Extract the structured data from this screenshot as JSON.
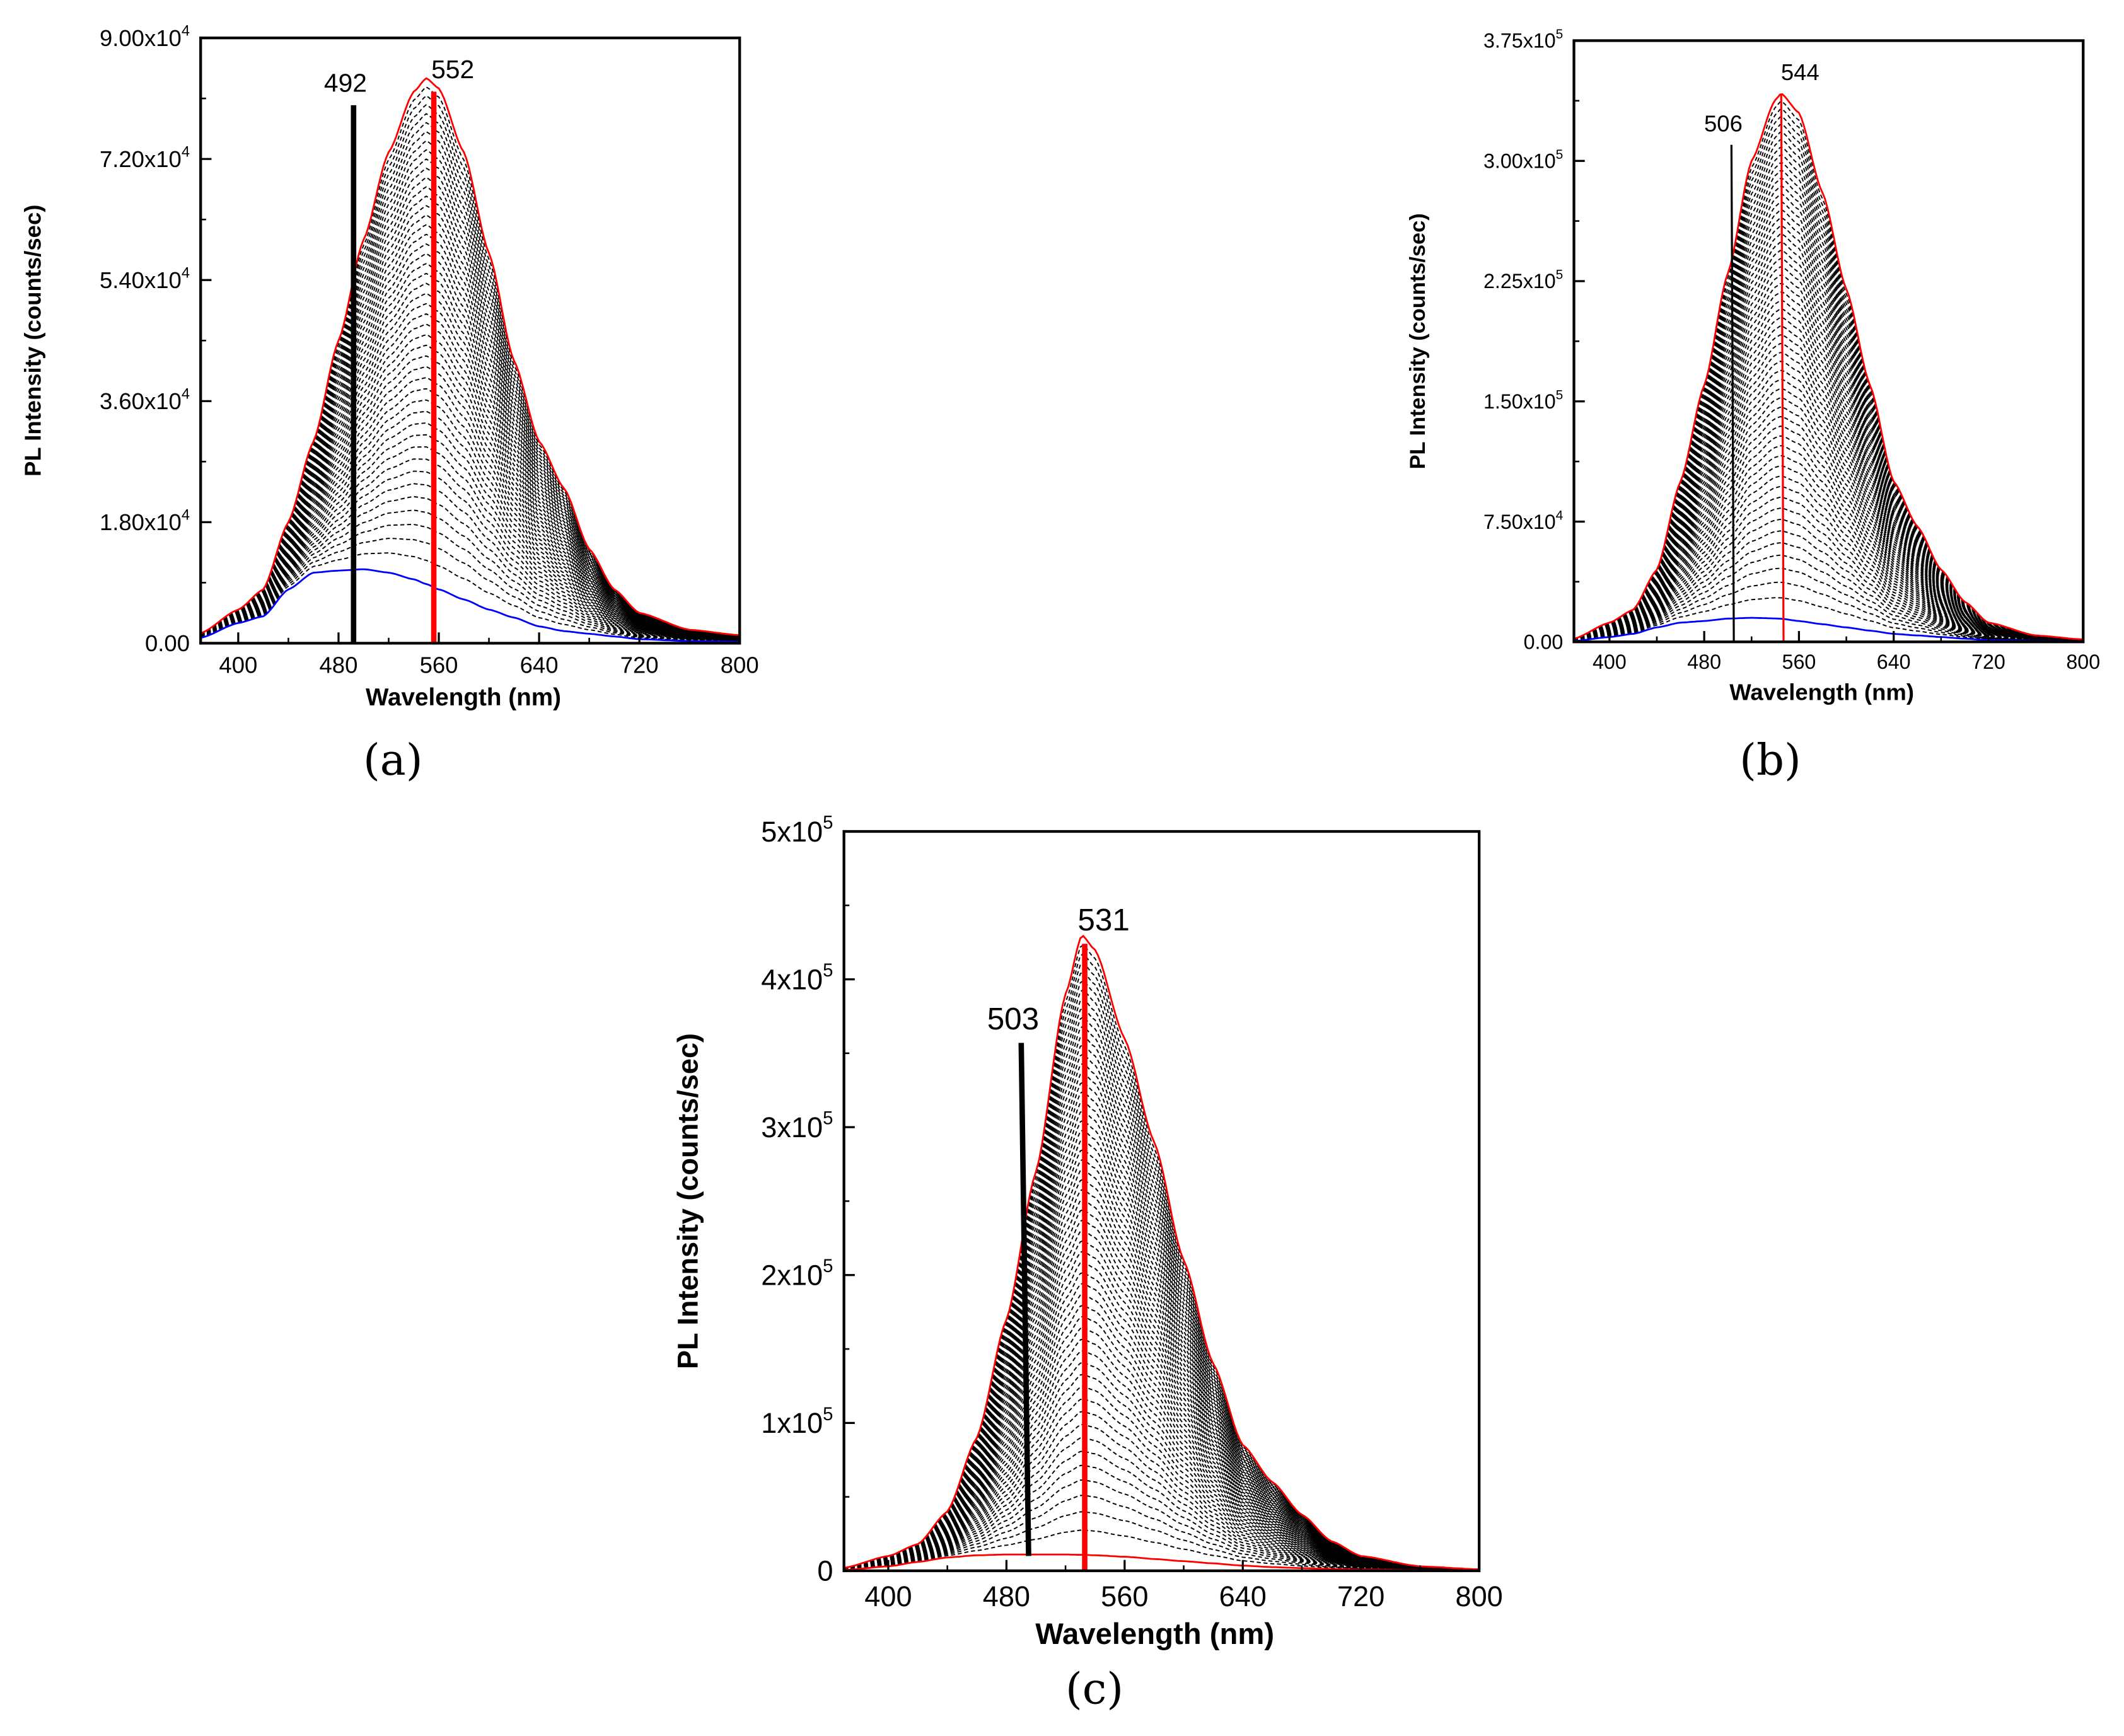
{
  "chart_data": [
    {
      "panel_label": "(a)",
      "type": "line",
      "xlabel": "Wavelength (nm)",
      "ylabel": "PL Intensity (counts/sec)",
      "xlim": [
        370,
        800
      ],
      "ylim": [
        0,
        90000
      ],
      "x_ticks": [
        "400",
        "480",
        "560",
        "640",
        "720",
        "800"
      ],
      "x_tick_values": [
        400,
        480,
        560,
        640,
        720,
        800
      ],
      "y_ticks": [
        "0.00",
        "1.80x10^4",
        "3.60x10^4",
        "5.40x10^4",
        "7.20x10^4",
        "9.00x10^4"
      ],
      "y_tick_values": [
        0,
        18000,
        36000,
        54000,
        72000,
        90000
      ],
      "grid": false,
      "dashed_spectra_count": 45,
      "x": [
        370,
        400,
        420,
        440,
        460,
        480,
        500,
        520,
        540,
        550,
        560,
        580,
        600,
        620,
        640,
        660,
        680,
        700,
        720,
        760,
        800
      ],
      "series": [
        {
          "role": "highest",
          "color": "#ff0000",
          "values": [
            1500,
            5000,
            8000,
            18000,
            30000,
            45000,
            60000,
            73000,
            82000,
            84000,
            82500,
            73000,
            58000,
            42000,
            30000,
            23000,
            14000,
            8000,
            4500,
            2000,
            1200
          ]
        },
        {
          "role": "lowest",
          "color": "#0000ff",
          "values": [
            800,
            3000,
            4000,
            8000,
            10500,
            10800,
            11000,
            10500,
            9500,
            8800,
            8000,
            6500,
            5000,
            3800,
            2500,
            1800,
            1400,
            1000,
            600,
            300,
            200
          ]
        }
      ],
      "annotations": [
        {
          "text": "492",
          "x": 492,
          "y_from": 0,
          "y_to": 80000,
          "x_to": 492,
          "color": "#000000",
          "thick": true
        },
        {
          "text": "552",
          "x": 556,
          "y_from": 0,
          "y_to": 82000,
          "x_to": 556,
          "color": "#ff0000",
          "thick": true
        }
      ]
    },
    {
      "panel_label": "(b)",
      "type": "line",
      "xlabel": "Wavelength (nm)",
      "ylabel": "PL Intensity (counts/sec)",
      "xlim": [
        370,
        800
      ],
      "ylim": [
        0,
        375000
      ],
      "x_ticks": [
        "400",
        "480",
        "560",
        "640",
        "720",
        "800"
      ],
      "x_tick_values": [
        400,
        480,
        560,
        640,
        720,
        800
      ],
      "y_ticks": [
        "0.00",
        "7.50x10^4",
        "1.50x10^5",
        "2.25x10^5",
        "3.00x10^5",
        "3.75x10^5"
      ],
      "y_tick_values": [
        0,
        75000,
        150000,
        225000,
        300000,
        375000
      ],
      "grid": false,
      "dashed_spectra_count": 55,
      "x": [
        370,
        400,
        420,
        440,
        460,
        480,
        500,
        520,
        540,
        545,
        560,
        580,
        600,
        620,
        640,
        660,
        680,
        700,
        720,
        760,
        800
      ],
      "series": [
        {
          "role": "highest",
          "color": "#ff0000",
          "values": [
            2000,
            12000,
            20000,
            45000,
            100000,
            160000,
            230000,
            300000,
            338000,
            342000,
            330000,
            280000,
            220000,
            160000,
            100000,
            72000,
            45000,
            25000,
            12000,
            4000,
            1500
          ]
        },
        {
          "role": "lowest",
          "color": "#0000ff",
          "values": [
            500,
            3000,
            5000,
            9000,
            12000,
            13000,
            14500,
            15000,
            14600,
            14400,
            13000,
            11000,
            9000,
            7000,
            5000,
            4000,
            3000,
            2000,
            1000,
            500,
            300
          ]
        }
      ],
      "annotations": [
        {
          "text": "506",
          "x": 505,
          "y_from": 0,
          "y_to": 310000,
          "x_to": 503,
          "color": "#000000",
          "thick": false
        },
        {
          "text": "544",
          "x": 547,
          "y_from": 0,
          "y_to": 342000,
          "x_to": 545,
          "color": "#ff0000",
          "thick": false
        }
      ]
    },
    {
      "panel_label": "(c)",
      "type": "line",
      "xlabel": "Wavelength (nm)",
      "ylabel": "PL Intensity (counts/sec)",
      "xlim": [
        370,
        800
      ],
      "ylim": [
        0,
        500000
      ],
      "x_ticks": [
        "400",
        "480",
        "560",
        "640",
        "720",
        "800"
      ],
      "x_tick_values": [
        400,
        480,
        560,
        640,
        720,
        800
      ],
      "y_ticks": [
        "0",
        "1x10^5",
        "2x10^5",
        "3x10^5",
        "4x10^5",
        "5x10^5"
      ],
      "y_tick_values": [
        0,
        100000,
        200000,
        300000,
        400000,
        500000
      ],
      "grid": false,
      "dashed_spectra_count": 55,
      "x": [
        370,
        400,
        420,
        440,
        460,
        480,
        500,
        520,
        531,
        540,
        560,
        580,
        600,
        620,
        640,
        660,
        680,
        700,
        720,
        760,
        800
      ],
      "series": [
        {
          "role": "highest",
          "color": "#ff0000",
          "values": [
            2000,
            10000,
            18000,
            40000,
            90000,
            170000,
            270000,
            390000,
            430000,
            420000,
            360000,
            290000,
            210000,
            140000,
            85000,
            60000,
            38000,
            20000,
            10000,
            3000,
            1000
          ]
        },
        {
          "role": "lowest",
          "color": "#ff0000",
          "values": [
            500,
            3000,
            6000,
            9000,
            10500,
            11000,
            11000,
            11000,
            10800,
            10500,
            9500,
            8000,
            6500,
            5000,
            3500,
            2500,
            1800,
            1200,
            800,
            400,
            200
          ]
        }
      ],
      "annotations": [
        {
          "text": "503",
          "x": 490,
          "y_from": 357000,
          "y_to": 10000,
          "x_to": 495,
          "color": "#000000",
          "thick": true
        },
        {
          "text": "531",
          "x": 533,
          "y_from": 0,
          "y_to": 424000,
          "x_to": 533,
          "color": "#ff0000",
          "thick": true
        }
      ]
    }
  ]
}
